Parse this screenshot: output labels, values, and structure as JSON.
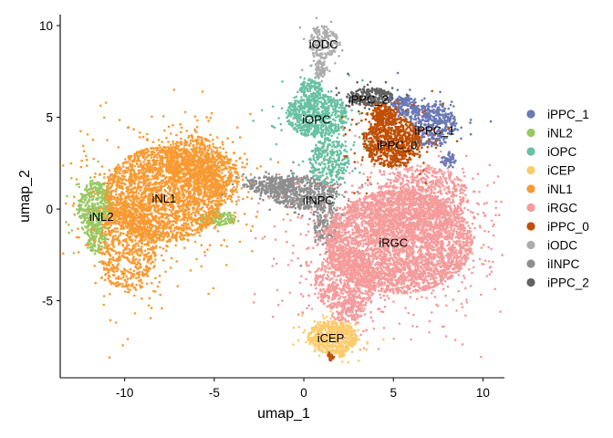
{
  "chart_data": {
    "type": "scatter",
    "xlabel": "umap_1",
    "ylabel": "umap_2",
    "xlim": [
      -13.6,
      11.2
    ],
    "ylim": [
      -9.2,
      10.6
    ],
    "x_ticks": [
      -10,
      -5,
      0,
      5,
      10
    ],
    "y_ticks": [
      -5,
      0,
      5,
      10
    ],
    "x_tick_labels": [
      "-10",
      "-5",
      "0",
      "5",
      "10"
    ],
    "y_tick_labels": [
      "-5",
      "0",
      "5",
      "10"
    ],
    "grid": false,
    "legend_position": "right",
    "series": [
      {
        "name": "iPPC_1",
        "color": "#6A78B4",
        "label_pos": [
          7.3,
          4.3
        ]
      },
      {
        "name": "iNL2",
        "color": "#99C862",
        "label_pos": [
          -11.3,
          -0.4
        ]
      },
      {
        "name": "iOPC",
        "color": "#68C1A2",
        "label_pos": [
          0.7,
          4.9
        ]
      },
      {
        "name": "iCEP",
        "color": "#FCCB6A",
        "label_pos": [
          1.5,
          -7.0
        ]
      },
      {
        "name": "iNL1",
        "color": "#F89A32",
        "label_pos": [
          -7.8,
          0.6
        ]
      },
      {
        "name": "iRGC",
        "color": "#F59B9B",
        "label_pos": [
          5.0,
          -1.8
        ]
      },
      {
        "name": "iPPC_0",
        "color": "#C04F04",
        "label_pos": [
          5.2,
          3.5
        ]
      },
      {
        "name": "iODC",
        "color": "#ADADAD",
        "label_pos": [
          1.1,
          9.0
        ]
      },
      {
        "name": "iINPC",
        "color": "#8E8E8E",
        "label_pos": [
          0.8,
          0.5
        ]
      },
      {
        "name": "iPPC_2",
        "color": "#616161",
        "label_pos": [
          3.6,
          6.0
        ]
      }
    ],
    "draw_order": [
      "iNL2",
      "iNL1",
      "iINPC",
      "iRGC",
      "iCEP",
      "iOPC",
      "iODC",
      "iPPC_2",
      "iPPC_1",
      "iPPC_0"
    ],
    "clusters": {
      "iNL1": [
        {
          "cx": -7.8,
          "cy": 0.8,
          "rx": 3.3,
          "ry": 2.6,
          "n": 2600
        },
        {
          "cx": -9.8,
          "cy": -2.0,
          "rx": 1.6,
          "ry": 2.6,
          "n": 700
        },
        {
          "cx": -6.2,
          "cy": 2.6,
          "rx": 1.6,
          "ry": 1.4,
          "n": 500
        },
        {
          "cx": -4.8,
          "cy": 1.7,
          "rx": 1.2,
          "ry": 1.3,
          "n": 350
        }
      ],
      "iNL2": [
        {
          "cx": -11.6,
          "cy": 0.1,
          "rx": 1.0,
          "ry": 1.4,
          "n": 500
        },
        {
          "cx": -11.6,
          "cy": -1.6,
          "rx": 0.6,
          "ry": 0.8,
          "n": 120
        },
        {
          "cx": -4.8,
          "cy": -0.5,
          "rx": 1.0,
          "ry": 0.4,
          "n": 150
        }
      ],
      "iINPC": [
        {
          "cx": -0.1,
          "cy": 0.9,
          "rx": 1.8,
          "ry": 0.9,
          "n": 550
        },
        {
          "cx": -2.0,
          "cy": 1.3,
          "rx": 1.3,
          "ry": 0.5,
          "n": 220
        },
        {
          "cx": 1.2,
          "cy": -0.6,
          "rx": 0.7,
          "ry": 1.4,
          "n": 220
        }
      ],
      "iRGC": [
        {
          "cx": 5.3,
          "cy": -1.8,
          "rx": 4.1,
          "ry": 2.8,
          "n": 4200
        },
        {
          "cx": 2.3,
          "cy": -3.9,
          "rx": 1.7,
          "ry": 1.8,
          "n": 650
        },
        {
          "cx": 6.6,
          "cy": 0.6,
          "rx": 2.6,
          "ry": 1.8,
          "n": 800
        },
        {
          "cx": 2.6,
          "cy": -5.6,
          "rx": 0.8,
          "ry": 0.7,
          "n": 120
        }
      ],
      "iCEP": [
        {
          "cx": 1.6,
          "cy": -7.0,
          "rx": 1.4,
          "ry": 0.9,
          "n": 550
        },
        {
          "cx": 2.1,
          "cy": -7.9,
          "rx": 0.2,
          "ry": 0.2,
          "n": 25
        }
      ],
      "iOPC": [
        {
          "cx": 0.7,
          "cy": 5.1,
          "rx": 1.7,
          "ry": 1.2,
          "n": 700
        },
        {
          "cx": 1.4,
          "cy": 2.6,
          "rx": 1.1,
          "ry": 1.3,
          "n": 300
        },
        {
          "cx": 0.4,
          "cy": 6.6,
          "rx": 0.6,
          "ry": 0.5,
          "n": 100
        }
      ],
      "iODC": [
        {
          "cx": 1.1,
          "cy": 9.1,
          "rx": 0.8,
          "ry": 0.9,
          "n": 200
        },
        {
          "cx": 0.9,
          "cy": 7.6,
          "rx": 0.3,
          "ry": 0.5,
          "n": 60
        }
      ],
      "iPPC_2": [
        {
          "cx": 3.7,
          "cy": 6.1,
          "rx": 1.3,
          "ry": 0.5,
          "n": 260
        }
      ],
      "iPPC_1": [
        {
          "cx": 7.2,
          "cy": 4.6,
          "rx": 1.3,
          "ry": 1.2,
          "n": 450
        },
        {
          "cx": 5.6,
          "cy": 5.6,
          "rx": 0.8,
          "ry": 0.5,
          "n": 150
        },
        {
          "cx": 8.1,
          "cy": 2.7,
          "rx": 0.4,
          "ry": 0.5,
          "n": 50
        }
      ],
      "iPPC_0": [
        {
          "cx": 4.9,
          "cy": 3.7,
          "rx": 1.6,
          "ry": 1.4,
          "n": 850
        },
        {
          "cx": 4.4,
          "cy": 5.2,
          "rx": 0.6,
          "ry": 0.5,
          "n": 150
        },
        {
          "cx": 1.5,
          "cy": -8.0,
          "rx": 0.2,
          "ry": 0.2,
          "n": 20
        }
      ]
    }
  }
}
